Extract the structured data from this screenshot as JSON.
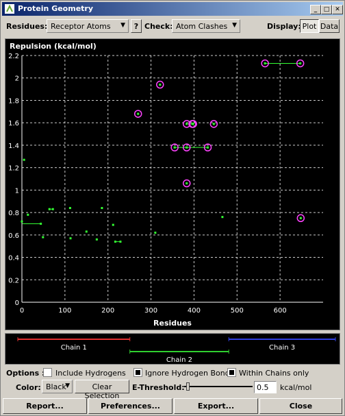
{
  "window": {
    "title": "Protein Geometry"
  },
  "toolbar": {
    "residues_label": "Residues:",
    "residues_value": "Receptor Atoms",
    "help_label": "?",
    "check_label": "Check:",
    "check_value": "Atom Clashes",
    "display_label": "Display:",
    "plot_tab": "Plot",
    "data_tab": "Data"
  },
  "chart_data": {
    "type": "scatter",
    "ylabel": "Repulsion (kcal/mol)",
    "xlabel": "Residues",
    "xlim": [
      0,
      700
    ],
    "ylim": [
      0,
      2.2
    ],
    "xticks": [
      0,
      100,
      200,
      300,
      400,
      500,
      600
    ],
    "yticks": [
      0,
      0.2,
      0.4,
      0.6,
      0.8,
      1,
      1.2,
      1.4,
      1.6,
      1.8,
      2,
      2.2
    ],
    "grid": true,
    "points": [
      {
        "x": 5,
        "y": 1.27,
        "hl": false
      },
      {
        "x": 0,
        "y": 0.72,
        "hl": false
      },
      {
        "x": 14,
        "y": 0.78,
        "hl": false
      },
      {
        "x": 44,
        "y": 0.7,
        "hl": false
      },
      {
        "x": 49,
        "y": 0.58,
        "hl": false
      },
      {
        "x": 64,
        "y": 0.83,
        "hl": false
      },
      {
        "x": 72,
        "y": 0.83,
        "hl": false
      },
      {
        "x": 112,
        "y": 0.84,
        "hl": false
      },
      {
        "x": 113,
        "y": 0.57,
        "hl": false
      },
      {
        "x": 150,
        "y": 0.63,
        "hl": false
      },
      {
        "x": 174,
        "y": 0.56,
        "hl": false
      },
      {
        "x": 186,
        "y": 0.84,
        "hl": false
      },
      {
        "x": 212,
        "y": 0.69,
        "hl": false
      },
      {
        "x": 217,
        "y": 0.54,
        "hl": false
      },
      {
        "x": 229,
        "y": 0.54,
        "hl": false
      },
      {
        "x": 310,
        "y": 0.62,
        "hl": false
      },
      {
        "x": 466,
        "y": 0.76,
        "hl": false
      },
      {
        "x": 270,
        "y": 1.68,
        "hl": true
      },
      {
        "x": 321,
        "y": 1.94,
        "hl": true
      },
      {
        "x": 355,
        "y": 1.38,
        "hl": true
      },
      {
        "x": 383,
        "y": 1.38,
        "hl": true
      },
      {
        "x": 432,
        "y": 1.38,
        "hl": true
      },
      {
        "x": 383,
        "y": 1.59,
        "hl": true
      },
      {
        "x": 396,
        "y": 1.59,
        "hl": true
      },
      {
        "x": 398,
        "y": 1.59,
        "hl": true
      },
      {
        "x": 446,
        "y": 1.59,
        "hl": true
      },
      {
        "x": 383,
        "y": 1.06,
        "hl": true
      },
      {
        "x": 565,
        "y": 2.13,
        "hl": true
      },
      {
        "x": 647,
        "y": 2.13,
        "hl": true
      },
      {
        "x": 648,
        "y": 0.75,
        "hl": true
      }
    ],
    "links": [
      [
        44,
        1
      ],
      [
        64,
        72
      ],
      [
        217,
        229
      ],
      [
        355,
        432
      ],
      [
        565,
        647
      ]
    ]
  },
  "chains": [
    {
      "label": "Chain 1",
      "color": "#e03030",
      "start": 0,
      "end": 247
    },
    {
      "label": "Chain 2",
      "color": "#30d030",
      "start": 247,
      "end": 465
    },
    {
      "label": "Chain 3",
      "color": "#3040e0",
      "start": 465,
      "end": 700
    }
  ],
  "options": {
    "label": "Options :",
    "include_h": "Include Hydrogens",
    "include_h_checked": false,
    "ignore_hb": "Ignore Hydrogen Bonds",
    "ignore_hb_checked": true,
    "within_chains": "Within Chains only",
    "within_chains_checked": true
  },
  "color_row": {
    "color_label": "Color:",
    "color_value": "Black",
    "clear_label": "Clear Selection",
    "threshold_label": "E-Threshold:",
    "threshold_value": "0.5",
    "unit": "kcal/mol"
  },
  "footer": {
    "report": "Report...",
    "preferences": "Preferences...",
    "export": "Export...",
    "close": "Close"
  },
  "colors": {
    "point": "#33ff33",
    "highlight": "#ff44ff",
    "grid": "#ffffff"
  }
}
